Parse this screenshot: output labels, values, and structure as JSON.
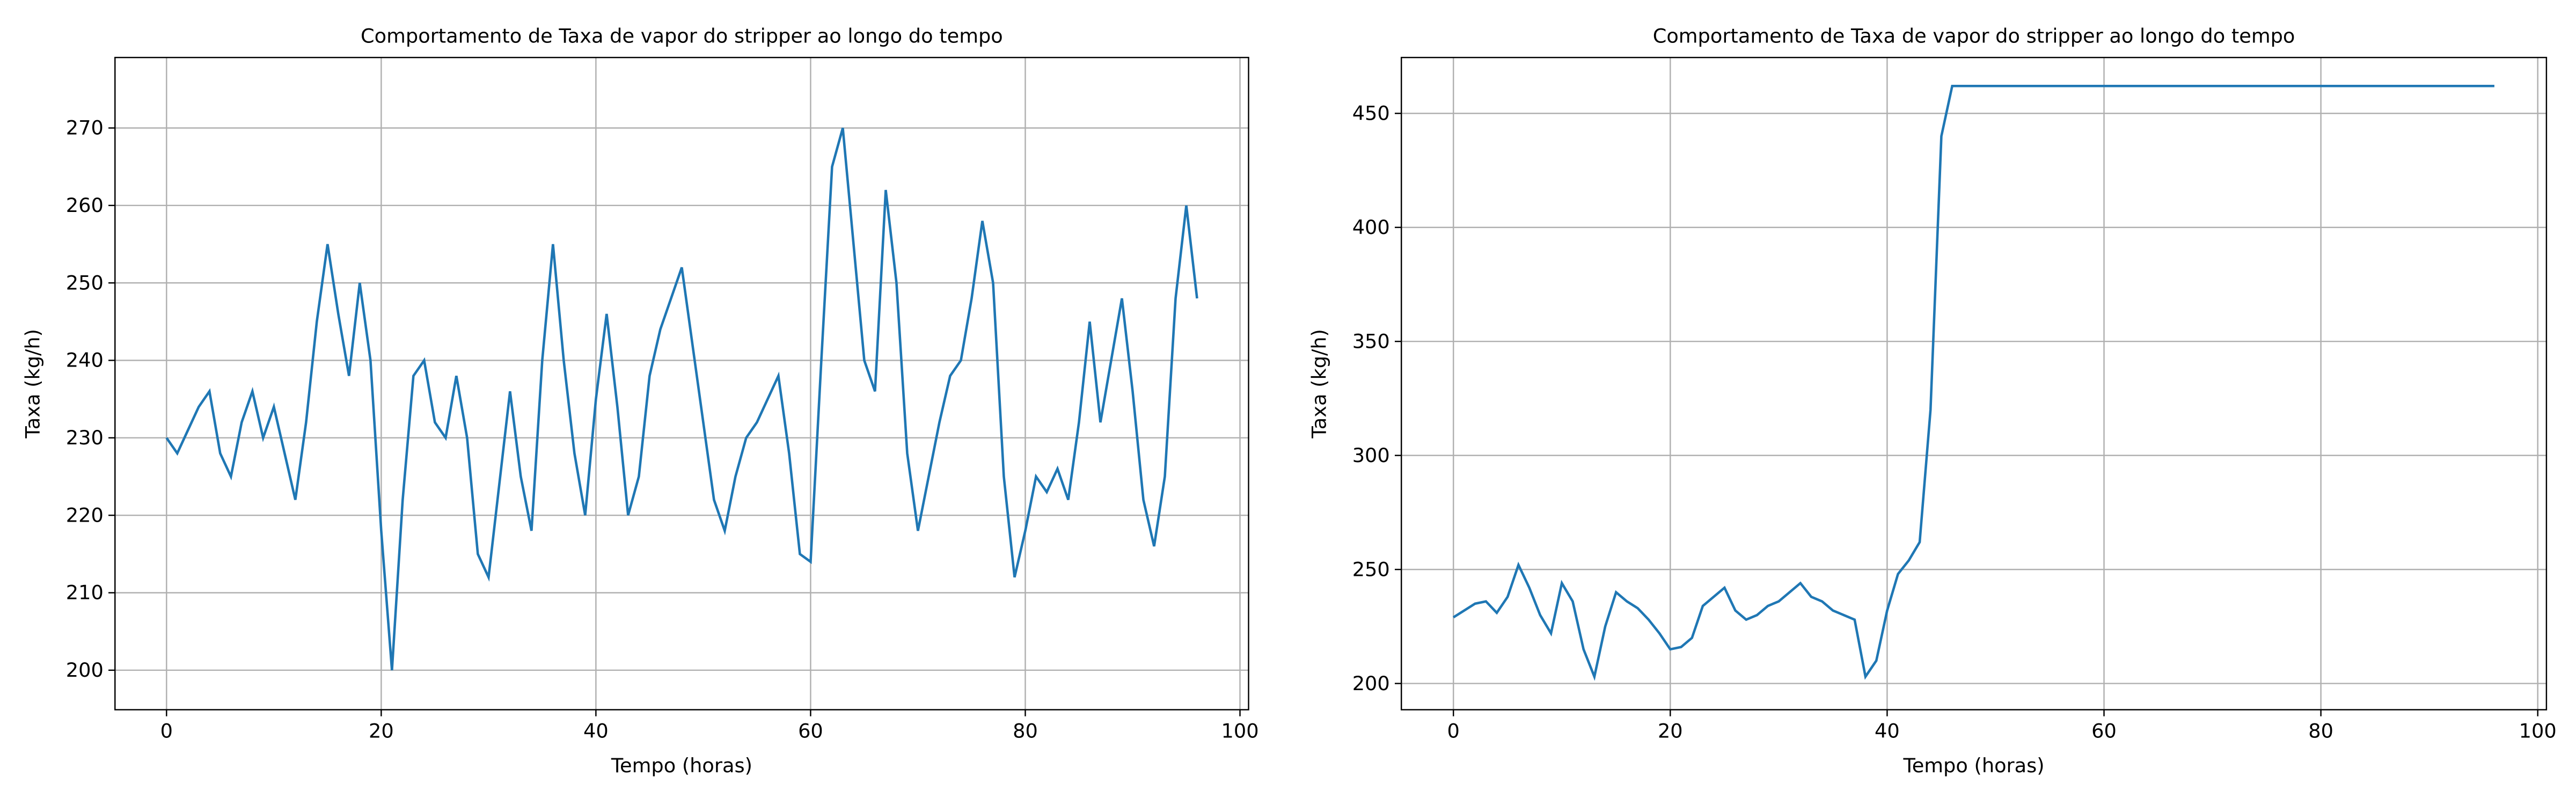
{
  "chart_data": [
    {
      "type": "line",
      "title": "Comportamento de Taxa de vapor do stripper ao longo do tempo",
      "xlabel": "Tempo (horas)",
      "ylabel": "Taxa (kg/h)",
      "x": [
        0,
        1,
        2,
        3,
        4,
        5,
        6,
        7,
        8,
        9,
        10,
        11,
        12,
        13,
        14,
        15,
        16,
        17,
        18,
        19,
        20,
        21,
        22,
        23,
        24,
        25,
        26,
        27,
        28,
        29,
        30,
        31,
        32,
        33,
        34,
        35,
        36,
        37,
        38,
        39,
        40,
        41,
        42,
        43,
        44,
        45,
        46,
        47,
        48,
        49,
        50,
        51,
        52,
        53,
        54,
        55,
        56,
        57,
        58,
        59,
        60,
        61,
        62,
        63,
        64,
        65,
        66,
        67,
        68,
        69,
        70,
        71,
        72,
        73,
        74,
        75,
        76,
        77,
        78,
        79,
        80,
        81,
        82,
        83,
        84,
        85,
        86,
        87,
        88,
        89,
        90,
        91,
        92,
        93,
        94,
        95,
        96
      ],
      "series": [
        {
          "color": "#1f77b4",
          "values": [
            230,
            228,
            231,
            234,
            236,
            228,
            225,
            232,
            236,
            230,
            234,
            228,
            222,
            232,
            245,
            255,
            246,
            238,
            250,
            240,
            218,
            200,
            222,
            238,
            240,
            232,
            230,
            238,
            230,
            215,
            212,
            224,
            236,
            225,
            218,
            240,
            255,
            240,
            228,
            220,
            235,
            246,
            234,
            220,
            225,
            238,
            244,
            248,
            252,
            242,
            232,
            222,
            218,
            225,
            230,
            232,
            235,
            238,
            228,
            215,
            214,
            240,
            265,
            270,
            255,
            240,
            236,
            262,
            250,
            228,
            218,
            225,
            232,
            238,
            240,
            248,
            258,
            250,
            225,
            212,
            218,
            225,
            223,
            226,
            222,
            232,
            245,
            232,
            240,
            248,
            236,
            222,
            216,
            225,
            248,
            260,
            248
          ]
        }
      ],
      "xlim": [
        -4.8,
        100.8
      ],
      "ylim": [
        194.9,
        279.1
      ],
      "xticks": [
        0,
        20,
        40,
        60,
        80,
        100
      ],
      "yticks": [
        200,
        210,
        220,
        230,
        240,
        250,
        260,
        270
      ],
      "grid": true
    },
    {
      "type": "line",
      "title": "Comportamento de Taxa de vapor do stripper ao longo do tempo",
      "xlabel": "Tempo (horas)",
      "ylabel": "Taxa (kg/h)",
      "x": [
        0,
        1,
        2,
        3,
        4,
        5,
        6,
        7,
        8,
        9,
        10,
        11,
        12,
        13,
        14,
        15,
        16,
        17,
        18,
        19,
        20,
        21,
        22,
        23,
        24,
        25,
        26,
        27,
        28,
        29,
        30,
        31,
        32,
        33,
        34,
        35,
        36,
        37,
        38,
        39,
        40,
        41,
        42,
        43,
        44,
        45,
        46,
        96
      ],
      "series": [
        {
          "color": "#1f77b4",
          "values": [
            229,
            232,
            235,
            236,
            231,
            238,
            252,
            242,
            230,
            222,
            244,
            236,
            215,
            203,
            225,
            240,
            236,
            233,
            228,
            222,
            215,
            216,
            220,
            234,
            238,
            242,
            232,
            228,
            230,
            234,
            236,
            240,
            244,
            238,
            236,
            232,
            230,
            228,
            203,
            210,
            232,
            248,
            254,
            262,
            320,
            440,
            462,
            462
          ]
        }
      ],
      "xlim": [
        -4.8,
        100.8
      ],
      "ylim": [
        188.5,
        474.5
      ],
      "xticks": [
        0,
        20,
        40,
        60,
        80,
        100
      ],
      "yticks": [
        200,
        250,
        300,
        350,
        400,
        450
      ],
      "grid": true
    }
  ]
}
